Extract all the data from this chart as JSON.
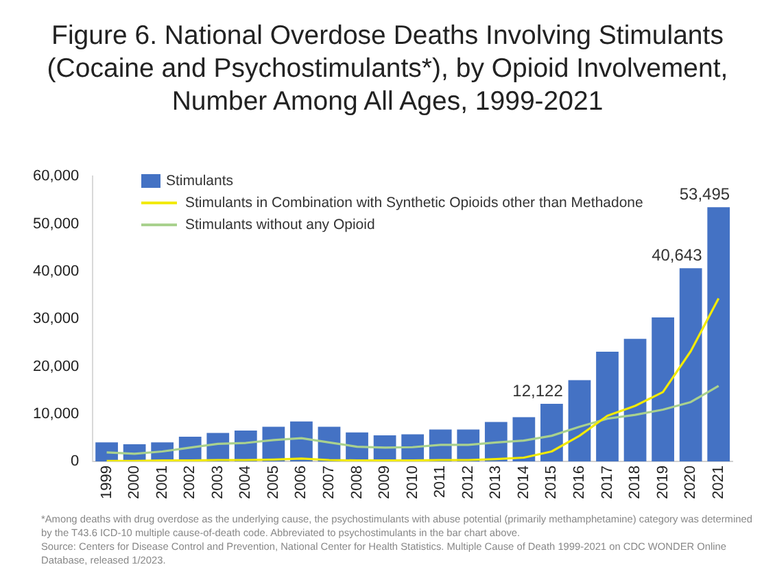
{
  "chart_data": {
    "type": "bar",
    "title": "Figure 6. National Overdose Deaths Involving Stimulants (Cocaine and Psychostimulants*), by Opioid Involvement, Number Among All Ages, 1999-2021",
    "categories": [
      "1999",
      "2000",
      "2001",
      "2002",
      "2003",
      "2004",
      "2005",
      "2006",
      "2007",
      "2008",
      "2009",
      "2010",
      "2011",
      "2012",
      "2013",
      "2014",
      "2015",
      "2016",
      "2017",
      "2018",
      "2019",
      "2020",
      "2021"
    ],
    "series": [
      {
        "name": "Stimulants",
        "color": "#4472c4",
        "values": [
          4000,
          3600,
          4000,
          5200,
          6000,
          6500,
          7300,
          8400,
          7300,
          6100,
          5500,
          5700,
          6700,
          6700,
          8300,
          9300,
          12122,
          17100,
          23100,
          25800,
          30300,
          40643,
          53495
        ],
        "value_labels": [
          null,
          null,
          null,
          null,
          null,
          null,
          null,
          null,
          null,
          null,
          null,
          null,
          null,
          null,
          null,
          null,
          "12,122",
          null,
          null,
          null,
          null,
          "40,643",
          "53,495"
        ]
      },
      {
        "name": "Stimulants in Combination with Synthetic Opioids other than Methadone",
        "type": "line",
        "color": "#f2ea00",
        "values": [
          100,
          100,
          200,
          200,
          300,
          300,
          400,
          600,
          300,
          200,
          200,
          200,
          300,
          300,
          500,
          800,
          2100,
          5400,
          9600,
          11700,
          14600,
          23200,
          34300
        ]
      },
      {
        "name": "Stimulants without any Opioid",
        "type": "line",
        "color": "#a9d18e",
        "values": [
          1900,
          1600,
          2100,
          2900,
          3700,
          3900,
          4500,
          4900,
          4000,
          3100,
          2900,
          3000,
          3500,
          3500,
          4000,
          4400,
          5400,
          7300,
          9000,
          9800,
          10900,
          12500,
          15900
        ]
      }
    ],
    "ylim": [
      0,
      60000
    ],
    "yticks": [
      {
        "value": 0,
        "label": "0"
      },
      {
        "value": 10000,
        "label": "10,000"
      },
      {
        "value": 20000,
        "label": "20,000"
      },
      {
        "value": 30000,
        "label": "30,000"
      },
      {
        "value": 40000,
        "label": "40,000"
      },
      {
        "value": 50000,
        "label": "50,000"
      },
      {
        "value": 60000,
        "label": "60,000"
      }
    ],
    "grid": false,
    "legend": "top left",
    "marker": "none",
    "annotations": [
      "*Among deaths with drug overdose as the underlying cause, the psychostimulants with abuse potential (primarily methamphetamine) category was determined by the T43.6 ICD-10 multiple cause-of-death code. Abbreviated to psychostimulants in the bar chart above.",
      "Source: Centers for Disease Control and Prevention, National Center for Health Statistics. Multiple Cause of Death 1999-2021 on CDC WONDER Online Database, released 1/2023."
    ]
  }
}
